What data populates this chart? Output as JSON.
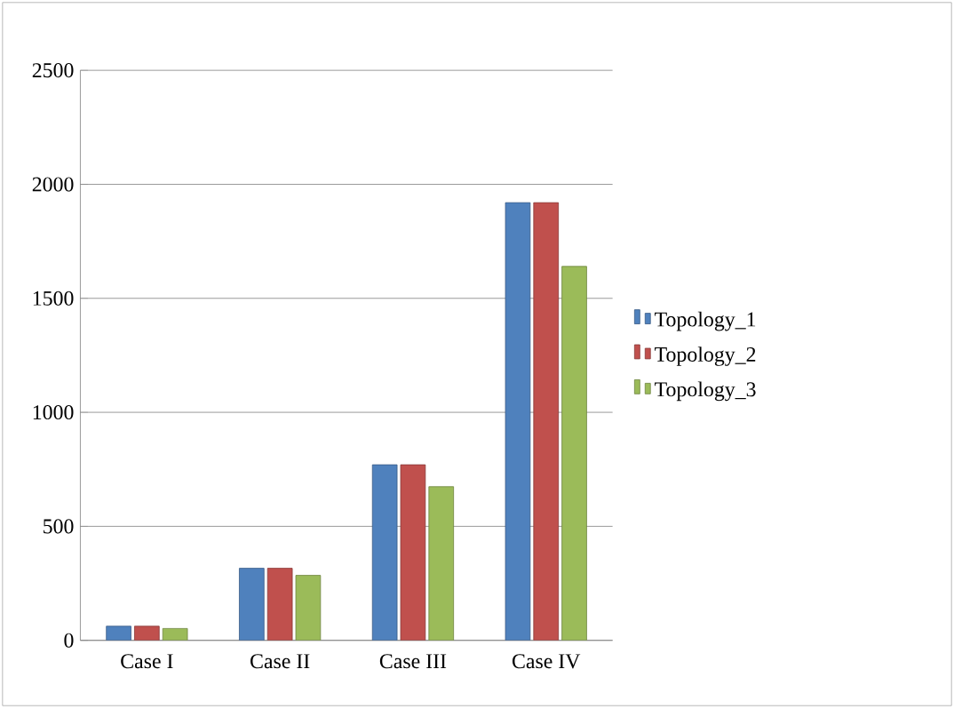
{
  "chart_data": {
    "type": "bar",
    "categories": [
      "Case I",
      "Case II",
      "Case III",
      "Case IV"
    ],
    "series": [
      {
        "name": "Topology_1",
        "color": "#4f81bd",
        "values": [
          62,
          316,
          770,
          1920
        ]
      },
      {
        "name": "Topology_2",
        "color": "#c0504d",
        "values": [
          62,
          316,
          770,
          1920
        ]
      },
      {
        "name": "Topology_3",
        "color": "#9bbb59",
        "values": [
          52,
          285,
          674,
          1640
        ]
      }
    ],
    "ylim": [
      0,
      2500
    ],
    "yticks": [
      0,
      500,
      1000,
      1500,
      2000,
      2500
    ],
    "grid": "y",
    "legend": "right"
  }
}
